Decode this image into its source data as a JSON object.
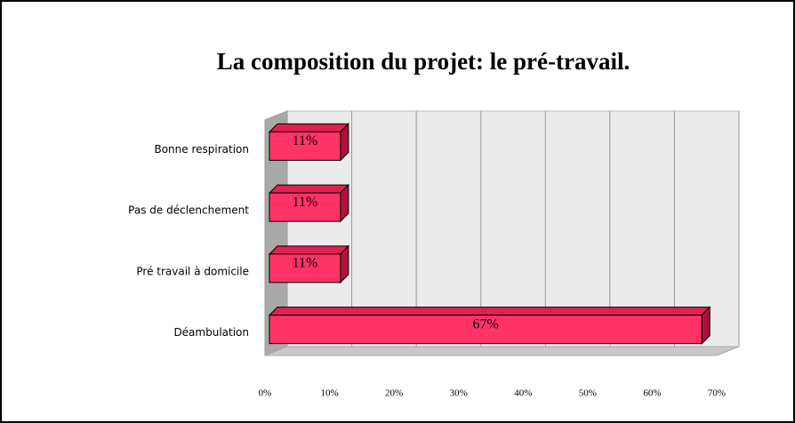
{
  "chart_data": {
    "type": "bar",
    "orientation": "horizontal",
    "title": "La composition du projet: le pré-travail.",
    "categories": [
      "Bonne respiration",
      "Pas de déclenchement",
      "Pré travail à domicile",
      "Déambulation"
    ],
    "values": [
      11,
      11,
      11,
      67
    ],
    "value_labels": [
      "11%",
      "11%",
      "11%",
      "67%"
    ],
    "color": "#ff3366",
    "xlim": [
      0,
      70
    ],
    "xticks": [
      {
        "value": 0,
        "label": "0%"
      },
      {
        "value": 10,
        "label": "10%"
      },
      {
        "value": 20,
        "label": "20%"
      },
      {
        "value": 30,
        "label": "30%"
      },
      {
        "value": 40,
        "label": "40%"
      },
      {
        "value": 50,
        "label": "50%"
      },
      {
        "value": 60,
        "label": "60%"
      },
      {
        "value": 70,
        "label": "70%"
      }
    ],
    "grid": true
  }
}
